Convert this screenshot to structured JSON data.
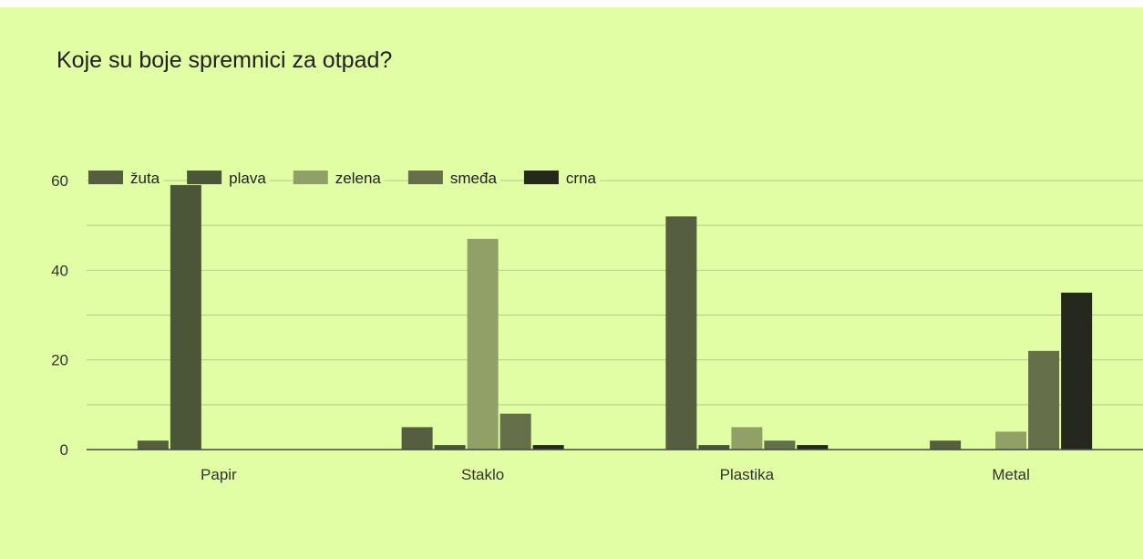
{
  "colors": {
    "background": "#e1fea4",
    "page_strip": "#ffffff",
    "gridline": "#b8c98a",
    "axis": "#444444"
  },
  "chart_data": {
    "type": "bar",
    "title": "Koje su boje spremnici za otpad?",
    "categories": [
      "Papir",
      "Staklo",
      "Plastika",
      "Metal"
    ],
    "ylim": [
      0,
      60
    ],
    "yticks": [
      0,
      20,
      40,
      60
    ],
    "grid": true,
    "legend_position": "top-left",
    "series": [
      {
        "name": "žuta",
        "color": "#555f3f",
        "values": [
          2,
          5,
          52,
          2
        ]
      },
      {
        "name": "plava",
        "color": "#4b5538",
        "values": [
          59,
          1,
          1,
          0
        ]
      },
      {
        "name": "zelena",
        "color": "#91a066",
        "values": [
          0,
          47,
          5,
          4
        ]
      },
      {
        "name": "smeđa",
        "color": "#65704a",
        "values": [
          0,
          8,
          2,
          22
        ]
      },
      {
        "name": "crna",
        "color": "#25281c",
        "values": [
          0,
          1,
          1,
          35
        ]
      }
    ]
  }
}
